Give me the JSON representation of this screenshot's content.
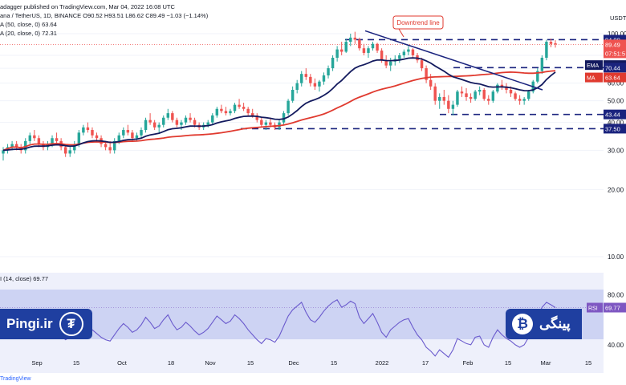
{
  "header": {
    "line1": "adagger published on TradingView.com, Mar 04, 2022 16:08 UTC",
    "line2": "ana / TetherUS, 1D, BINANCE  O90.52  H93.51  L86.62  C89.49  −1.03 (−1.14%)",
    "line3": "A (50, close, 0)  63.64",
    "line4": "A (20, close, 0)  72.31",
    "rsi_label": "I (14, close)  69.77"
  },
  "watermarks": {
    "left_text": "Pingi.ir",
    "right_text": "پینگی",
    "tether_glyph": "₮",
    "btc_glyph": "₿"
  },
  "credit": "TradingView",
  "colors": {
    "up": "#26a69a",
    "down": "#ef5350",
    "ema": "#131a5e",
    "ma": "#e03a2f",
    "level_line": "#1a237e",
    "rsi_line": "#6a5acd",
    "rsi_band": "#e8eaf8",
    "rsi_bg_tint": "#c9cff2"
  },
  "chart_data": [
    {
      "type": "candlestick",
      "title": "",
      "price_axis_currency": "USDT",
      "y_ticks": [
        10.0,
        20.0,
        30.0,
        40.0,
        50.0,
        60.0,
        70.0,
        80.0,
        100.0
      ],
      "x_ticks": [
        "Sep",
        "15",
        "Oct",
        "18",
        "Nov",
        "15",
        "Dec",
        "15",
        "2022",
        "17",
        "Feb",
        "15",
        "Mar",
        "15"
      ],
      "price_labels": [
        {
          "text": "USDT",
          "value": 115
        },
        {
          "text": "94.00",
          "value": 94
        },
        {
          "text": "89.49",
          "value": 89.49
        },
        {
          "text": "07:51:5",
          "value": 86
        },
        {
          "text": "EMA",
          "value": 72.31,
          "tag": "72.31"
        },
        {
          "text": "70.44",
          "value": 70.44
        },
        {
          "text": "MA",
          "value": 63.64,
          "tag": "63.64"
        },
        {
          "text": "43.44",
          "value": 43.44
        },
        {
          "text": "37.50",
          "value": 37.5
        }
      ],
      "horizontal_levels": [
        94.0,
        70.44,
        43.44,
        37.5
      ],
      "annotation": "Downtrend line",
      "ohlc": [
        [
          29,
          31,
          27,
          30
        ],
        [
          30,
          32,
          29,
          31
        ],
        [
          31,
          33,
          30,
          32
        ],
        [
          32,
          33,
          30,
          31
        ],
        [
          31,
          32,
          29,
          30
        ],
        [
          30,
          34,
          29,
          33
        ],
        [
          33,
          36,
          32,
          35
        ],
        [
          35,
          37,
          33,
          34
        ],
        [
          34,
          35,
          31,
          32
        ],
        [
          32,
          33,
          30,
          31
        ],
        [
          31,
          33,
          30,
          32
        ],
        [
          32,
          35,
          31,
          34
        ],
        [
          34,
          36,
          32,
          33
        ],
        [
          33,
          34,
          30,
          31
        ],
        [
          31,
          32,
          28,
          29
        ],
        [
          29,
          31,
          28,
          30
        ],
        [
          30,
          33,
          29,
          32
        ],
        [
          32,
          37,
          31,
          36
        ],
        [
          36,
          39,
          35,
          38
        ],
        [
          38,
          40,
          36,
          37
        ],
        [
          37,
          38,
          34,
          35
        ],
        [
          35,
          36,
          33,
          34
        ],
        [
          34,
          35,
          31,
          32
        ],
        [
          32,
          33,
          30,
          31
        ],
        [
          31,
          33,
          29,
          30
        ],
        [
          30,
          34,
          29,
          33
        ],
        [
          33,
          36,
          32,
          35
        ],
        [
          35,
          38,
          34,
          37
        ],
        [
          37,
          39,
          35,
          36
        ],
        [
          36,
          37,
          33,
          34
        ],
        [
          34,
          36,
          33,
          35
        ],
        [
          35,
          38,
          34,
          37
        ],
        [
          37,
          42,
          36,
          41
        ],
        [
          41,
          44,
          39,
          40
        ],
        [
          40,
          41,
          37,
          38
        ],
        [
          38,
          40,
          36,
          39
        ],
        [
          39,
          43,
          38,
          42
        ],
        [
          42,
          46,
          41,
          44
        ],
        [
          44,
          45,
          40,
          41
        ],
        [
          41,
          42,
          38,
          39
        ],
        [
          39,
          41,
          37,
          40
        ],
        [
          40,
          43,
          39,
          42
        ],
        [
          42,
          44,
          40,
          41
        ],
        [
          41,
          42,
          38,
          39
        ],
        [
          39,
          40,
          37,
          38
        ],
        [
          38,
          40,
          37,
          39
        ],
        [
          39,
          41,
          38,
          40
        ],
        [
          40,
          44,
          39,
          43
        ],
        [
          43,
          47,
          42,
          46
        ],
        [
          46,
          48,
          44,
          45
        ],
        [
          45,
          47,
          43,
          44
        ],
        [
          44,
          46,
          43,
          45
        ],
        [
          45,
          49,
          44,
          48
        ],
        [
          48,
          51,
          46,
          47
        ],
        [
          47,
          49,
          45,
          46
        ],
        [
          46,
          47,
          43,
          44
        ],
        [
          44,
          46,
          42,
          43
        ],
        [
          43,
          44,
          40,
          41
        ],
        [
          41,
          42,
          38,
          39
        ],
        [
          39,
          41,
          37,
          40
        ],
        [
          40,
          42,
          38,
          39
        ],
        [
          39,
          40,
          37,
          38
        ],
        [
          38,
          41,
          37,
          40
        ],
        [
          40,
          45,
          39,
          44
        ],
        [
          44,
          51,
          43,
          50
        ],
        [
          50,
          58,
          49,
          56
        ],
        [
          56,
          62,
          54,
          60
        ],
        [
          60,
          68,
          58,
          66
        ],
        [
          66,
          70,
          62,
          64
        ],
        [
          64,
          66,
          58,
          60
        ],
        [
          60,
          63,
          56,
          58
        ],
        [
          58,
          62,
          55,
          61
        ],
        [
          61,
          67,
          59,
          65
        ],
        [
          65,
          72,
          63,
          70
        ],
        [
          70,
          80,
          68,
          78
        ],
        [
          78,
          88,
          75,
          85
        ],
        [
          85,
          92,
          80,
          83
        ],
        [
          83,
          95,
          82,
          92
        ],
        [
          92,
          100,
          88,
          96
        ],
        [
          96,
          102,
          90,
          94
        ],
        [
          94,
          96,
          84,
          86
        ],
        [
          86,
          90,
          80,
          82
        ],
        [
          82,
          88,
          78,
          86
        ],
        [
          86,
          92,
          84,
          90
        ],
        [
          90,
          91,
          82,
          84
        ],
        [
          84,
          86,
          74,
          76
        ],
        [
          76,
          80,
          70,
          72
        ],
        [
          72,
          78,
          68,
          75
        ],
        [
          75,
          80,
          72,
          77
        ],
        [
          77,
          82,
          74,
          80
        ],
        [
          80,
          85,
          78,
          83
        ],
        [
          83,
          88,
          80,
          85
        ],
        [
          85,
          86,
          78,
          80
        ],
        [
          80,
          82,
          74,
          76
        ],
        [
          76,
          78,
          68,
          70
        ],
        [
          70,
          72,
          60,
          62
        ],
        [
          62,
          66,
          56,
          58
        ],
        [
          58,
          60,
          48,
          50
        ],
        [
          50,
          54,
          46,
          52
        ],
        [
          52,
          56,
          48,
          50
        ],
        [
          50,
          53,
          44,
          46
        ],
        [
          46,
          50,
          43,
          48
        ],
        [
          48,
          56,
          47,
          55
        ],
        [
          55,
          58,
          52,
          54
        ],
        [
          54,
          57,
          50,
          52
        ],
        [
          52,
          54,
          49,
          51
        ],
        [
          51,
          56,
          50,
          55
        ],
        [
          55,
          58,
          53,
          56
        ],
        [
          56,
          57,
          50,
          51
        ],
        [
          51,
          53,
          48,
          50
        ],
        [
          50,
          56,
          49,
          55
        ],
        [
          55,
          60,
          54,
          59
        ],
        [
          59,
          62,
          56,
          58
        ],
        [
          58,
          60,
          54,
          56
        ],
        [
          56,
          58,
          52,
          54
        ],
        [
          54,
          55,
          50,
          51
        ],
        [
          51,
          53,
          48,
          50
        ],
        [
          50,
          52,
          48,
          51
        ],
        [
          51,
          56,
          50,
          55
        ],
        [
          55,
          62,
          54,
          61
        ],
        [
          61,
          70,
          60,
          68
        ],
        [
          68,
          80,
          66,
          78
        ],
        [
          78,
          94,
          76,
          92
        ],
        [
          92,
          95,
          87,
          90
        ],
        [
          90.5,
          93.5,
          86.6,
          89.5
        ]
      ],
      "rsi": [
        62,
        58,
        55,
        52,
        50,
        53,
        57,
        54,
        50,
        48,
        51,
        55,
        52,
        47,
        44,
        46,
        50,
        56,
        60,
        57,
        52,
        49,
        46,
        44,
        43,
        48,
        53,
        57,
        54,
        50,
        52,
        56,
        62,
        58,
        53,
        55,
        60,
        64,
        57,
        52,
        54,
        58,
        55,
        51,
        48,
        50,
        53,
        58,
        63,
        60,
        57,
        59,
        64,
        61,
        57,
        52,
        48,
        44,
        41,
        45,
        44,
        42,
        47,
        55,
        63,
        68,
        71,
        74,
        66,
        60,
        58,
        62,
        67,
        71,
        74,
        76,
        70,
        72,
        75,
        73,
        62,
        57,
        61,
        65,
        58,
        50,
        46,
        52,
        55,
        58,
        60,
        61,
        54,
        48,
        44,
        38,
        35,
        31,
        36,
        33,
        30,
        36,
        45,
        43,
        41,
        40,
        46,
        47,
        40,
        38,
        46,
        52,
        48,
        45,
        43,
        40,
        38,
        40,
        46,
        52,
        62,
        70,
        74,
        72,
        69.77
      ]
    }
  ]
}
